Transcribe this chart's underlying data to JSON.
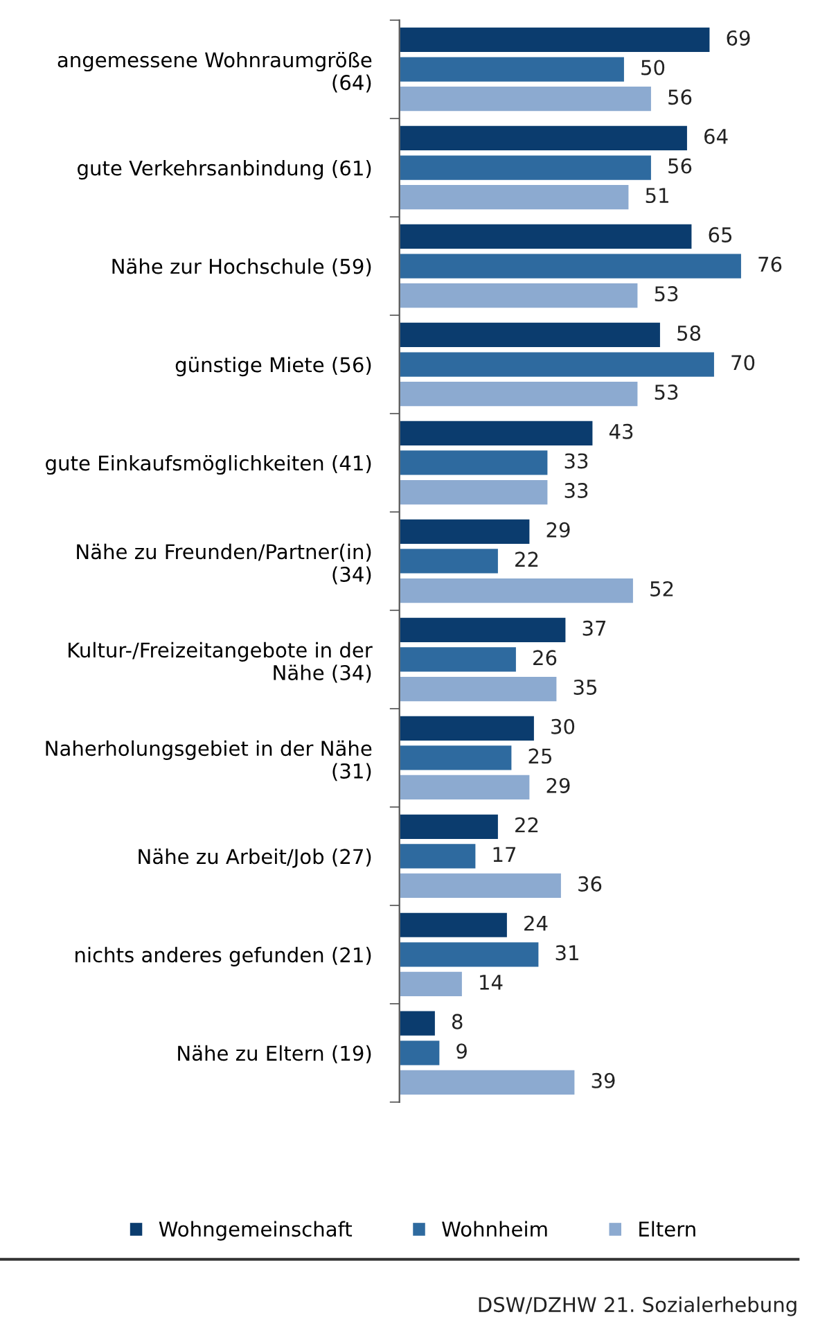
{
  "chart_data": {
    "type": "bar",
    "orientation": "horizontal",
    "data_labels": true,
    "legend": "bottom",
    "grid": false,
    "categories": [
      "angemessene Wohnraumgröße\n(64)",
      "gute Verkehrsanbindung (61)",
      "Nähe zur Hochschule (59)",
      "günstige Miete (56)",
      "gute Einkaufsmöglichkeiten (41)",
      "Nähe zu Freunden/Partner(in)\n(34)",
      "Kultur-/Freizeitangebote in der\nNähe (34)",
      "Naherholungsgebiet in der Nähe\n(31)",
      "Nähe zu Arbeit/Job (27)",
      "nichts anderes gefunden (21)",
      "Nähe zu Eltern (19)"
    ],
    "series": [
      {
        "name": "Wohngemeinschaft",
        "color": "#0b3c6e",
        "values": [
          69,
          64,
          65,
          58,
          43,
          29,
          37,
          30,
          22,
          24,
          8
        ]
      },
      {
        "name": "Wohnheim",
        "color": "#2e6a9f",
        "values": [
          50,
          56,
          76,
          70,
          33,
          22,
          26,
          25,
          17,
          31,
          9
        ]
      },
      {
        "name": "Eltern",
        "color": "#8caad0",
        "values": [
          56,
          51,
          53,
          53,
          33,
          52,
          35,
          29,
          36,
          14,
          39
        ]
      }
    ],
    "annotations": [
      "DSW/DZHW 21. Sozialerhebung"
    ]
  }
}
